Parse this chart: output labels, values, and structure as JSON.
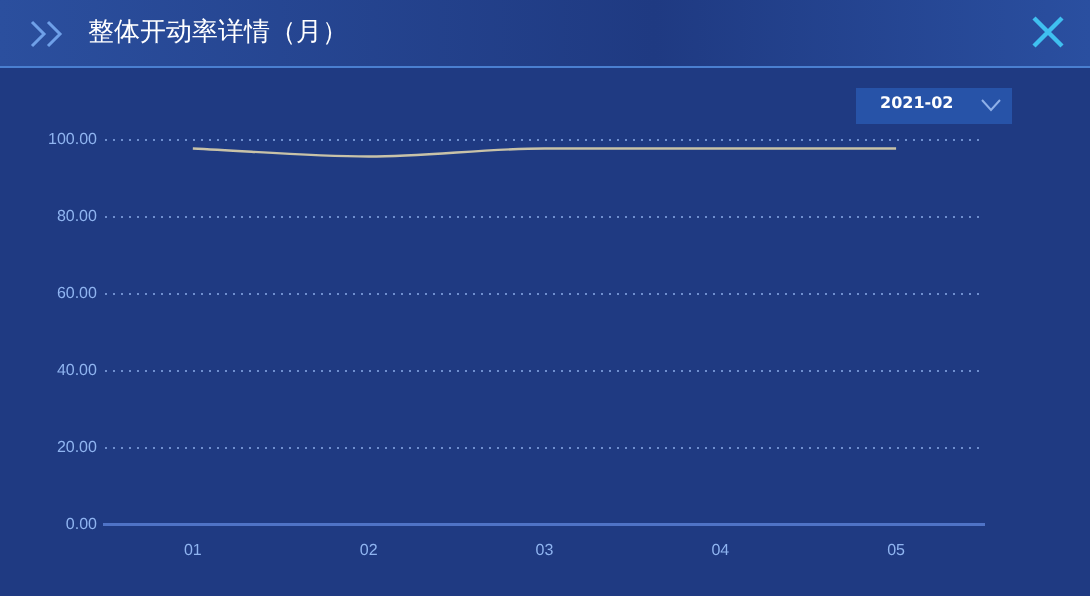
{
  "chart_data": {
    "type": "line",
    "title": "整体开动率详情（月）",
    "annotations": [
      "2021-02"
    ],
    "categories": [
      "01",
      "02",
      "03",
      "04",
      "05"
    ],
    "series": [
      {
        "color": "#c8c2a8",
        "values": [
          97.8,
          95.7,
          97.8,
          97.8,
          97.8
        ]
      }
    ],
    "ylim": [
      0,
      100
    ],
    "yticks": [
      {
        "value": 0,
        "label": "0.00"
      },
      {
        "value": 20,
        "label": "20.00"
      },
      {
        "value": 40,
        "label": "40.00"
      },
      {
        "value": 60,
        "label": "60.00"
      },
      {
        "value": 80,
        "label": "80.00"
      },
      {
        "value": 100,
        "label": "100.00"
      }
    ],
    "grid": "y",
    "marker": "none",
    "line_style": "solid"
  }
}
